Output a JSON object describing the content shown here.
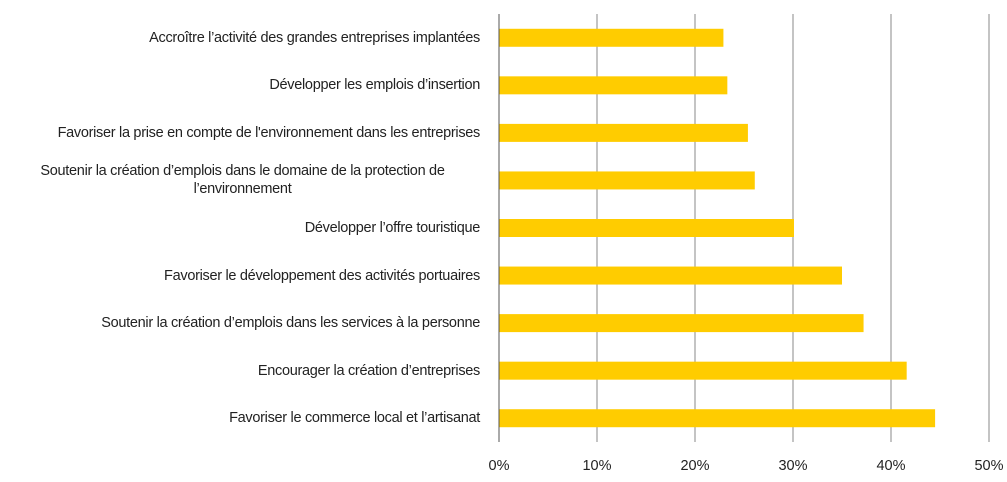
{
  "chart_data": {
    "type": "bar",
    "orientation": "horizontal",
    "categories": [
      "Accroître l’activité des grandes entreprises implantées",
      "Développer les emplois d’insertion",
      "Favoriser la prise en compte de l'environnement dans les entreprises",
      "Soutenir la création d’emplois dans le domaine de la protection de l’environnement",
      "Développer l’offre touristique",
      "Favoriser le développement des activités portuaires",
      "Soutenir la création d’emplois dans les services à la personne",
      "Encourager la création d’entreprises",
      "Favoriser le commerce local et l’artisanat"
    ],
    "values": [
      22.9,
      23.3,
      25.4,
      26.1,
      30.1,
      35.0,
      37.2,
      41.6,
      44.5
    ],
    "color": "#ffcc00",
    "xlim": [
      0,
      50
    ],
    "xticks": [
      {
        "value": 0,
        "label": "0%"
      },
      {
        "value": 10,
        "label": "10%"
      },
      {
        "value": 20,
        "label": "20%"
      },
      {
        "value": 30,
        "label": "30%"
      },
      {
        "value": 40,
        "label": "40%"
      },
      {
        "value": 50,
        "label": "50%"
      }
    ],
    "grid": true
  }
}
